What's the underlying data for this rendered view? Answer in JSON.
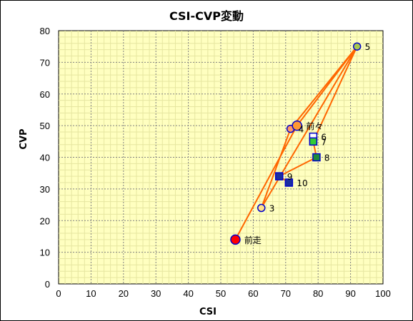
{
  "chart_data": {
    "type": "scatter",
    "title": "CSI-CVP変動",
    "xlabel": "CSI",
    "ylabel": "CVP",
    "xlim": [
      0,
      100
    ],
    "ylim": [
      0,
      80
    ],
    "x_major": 10,
    "y_major": 10,
    "x_ticks": [
      "0",
      "10",
      "20",
      "30",
      "40",
      "50",
      "60",
      "70",
      "80",
      "90",
      "100"
    ],
    "y_ticks": [
      "0",
      "10",
      "20",
      "30",
      "40",
      "50",
      "60",
      "70",
      "80"
    ],
    "grid": true,
    "legend": "none",
    "colors": {
      "plot_bg": "#ffffc0",
      "line": "#ff6600",
      "major_grid": "#808080",
      "minor_grid": "#e6e6a0"
    },
    "points": [
      {
        "label": "前走",
        "x": 54.5,
        "y": 14,
        "marker": "circle",
        "size": 13,
        "fill": "#ff0000",
        "stroke": "#0000cc"
      },
      {
        "label": "3",
        "x": 62.5,
        "y": 24,
        "marker": "circle",
        "size": 10,
        "fill": "#ffe08a",
        "stroke": "#0000cc"
      },
      {
        "label": "4",
        "x": 71.5,
        "y": 49,
        "marker": "circle",
        "size": 10,
        "fill": "#ff9966",
        "stroke": "#0000cc"
      },
      {
        "label": "5",
        "x": 92.0,
        "y": 75,
        "marker": "circle",
        "size": 10,
        "fill": "#a8c850",
        "stroke": "#0000cc"
      },
      {
        "label": "6",
        "x": 78.5,
        "y": 46.5,
        "marker": "square",
        "size": 10,
        "fill": "#ffffff",
        "stroke": "#0000cc"
      },
      {
        "label": "7",
        "x": 78.5,
        "y": 45,
        "marker": "square",
        "size": 10,
        "fill": "#33cc33",
        "stroke": "#0000cc"
      },
      {
        "label": "8",
        "x": 79.5,
        "y": 40,
        "marker": "square",
        "size": 10,
        "fill": "#1e8a3a",
        "stroke": "#0000cc"
      },
      {
        "label": "9",
        "x": 68.0,
        "y": 34,
        "marker": "square",
        "size": 10,
        "fill": "#1a2fa0",
        "stroke": "#0000cc"
      },
      {
        "label": "10",
        "x": 71.0,
        "y": 32,
        "marker": "square",
        "size": 10,
        "fill": "#1a2fa0",
        "stroke": "#0000cc"
      },
      {
        "label": "前々",
        "x": 73.5,
        "y": 50,
        "marker": "circle",
        "size": 13,
        "fill": "#ff9933",
        "stroke": "#0000cc"
      }
    ],
    "line_path": [
      [
        54.5,
        14
      ],
      [
        73.5,
        50
      ],
      [
        92.0,
        75
      ],
      [
        62.5,
        24
      ],
      [
        71.5,
        49
      ],
      [
        92.0,
        75
      ],
      [
        78.5,
        45
      ],
      [
        79.5,
        40
      ],
      [
        68.0,
        34
      ],
      [
        71.0,
        32
      ]
    ]
  }
}
